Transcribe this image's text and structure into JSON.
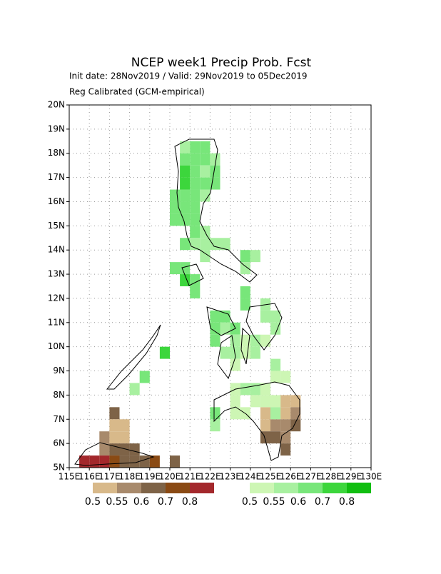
{
  "chart_data": {
    "type": "probmap",
    "title": "NCEP week1 Precip Prob. Fcst",
    "subtitle": "Init date: 28Nov2019 / Valid: 29Nov2019 to 05Dec2019",
    "note": "Reg Calibrated (GCM-empirical)",
    "xlim": [
      115,
      130
    ],
    "ylim": [
      5,
      20
    ],
    "cell": 0.5,
    "grid": true,
    "xticks": [
      {
        "value": 115,
        "label": "115E"
      },
      {
        "value": 116,
        "label": "116E"
      },
      {
        "value": 117,
        "label": "117E"
      },
      {
        "value": 118,
        "label": "118E"
      },
      {
        "value": 119,
        "label": "119E"
      },
      {
        "value": 120,
        "label": "120E"
      },
      {
        "value": 121,
        "label": "121E"
      },
      {
        "value": 122,
        "label": "122E"
      },
      {
        "value": 123,
        "label": "123E"
      },
      {
        "value": 124,
        "label": "124E"
      },
      {
        "value": 125,
        "label": "125E"
      },
      {
        "value": 126,
        "label": "126E"
      },
      {
        "value": 127,
        "label": "127E"
      },
      {
        "value": 128,
        "label": "128E"
      },
      {
        "value": 129,
        "label": "129E"
      },
      {
        "value": 130,
        "label": "130E"
      }
    ],
    "yticks": [
      {
        "value": 5,
        "label": "5N"
      },
      {
        "value": 6,
        "label": "6N"
      },
      {
        "value": 7,
        "label": "7N"
      },
      {
        "value": 8,
        "label": "8N"
      },
      {
        "value": 9,
        "label": "9N"
      },
      {
        "value": 10,
        "label": "10N"
      },
      {
        "value": 11,
        "label": "11N"
      },
      {
        "value": 12,
        "label": "12N"
      },
      {
        "value": 13,
        "label": "13N"
      },
      {
        "value": 14,
        "label": "14N"
      },
      {
        "value": 15,
        "label": "15N"
      },
      {
        "value": 16,
        "label": "16N"
      },
      {
        "value": 17,
        "label": "17N"
      },
      {
        "value": 18,
        "label": "18N"
      },
      {
        "value": 19,
        "label": "19N"
      },
      {
        "value": 20,
        "label": "20N"
      }
    ],
    "below": {
      "levels": [
        0.5,
        0.55,
        0.6,
        0.7,
        0.8
      ],
      "colors": [
        "#d8b98a",
        "#a88a6c",
        "#7e6347",
        "#8a4a14",
        "#a3282c"
      ],
      "cells": [
        [
          117,
          7,
          0.6
        ],
        [
          117,
          6.5,
          0.5
        ],
        [
          117.5,
          6.5,
          0.5
        ],
        [
          116.5,
          6,
          0.55
        ],
        [
          117,
          6,
          0.5
        ],
        [
          117.5,
          6,
          0.5
        ],
        [
          116.5,
          5.5,
          0.55
        ],
        [
          117,
          5.5,
          0.6
        ],
        [
          117.5,
          5.5,
          0.6
        ],
        [
          118,
          5.5,
          0.6
        ],
        [
          115.5,
          5,
          0.8
        ],
        [
          116,
          5,
          0.8
        ],
        [
          116.5,
          5,
          0.8
        ],
        [
          117,
          5,
          0.7
        ],
        [
          117.5,
          5,
          0.6
        ],
        [
          118,
          5,
          0.6
        ],
        [
          118.5,
          5,
          0.6
        ],
        [
          119,
          5,
          0.7
        ],
        [
          120,
          5,
          0.6
        ],
        [
          125.5,
          7.5,
          0.5
        ],
        [
          126,
          7.5,
          0.5
        ],
        [
          124.5,
          7,
          0.5
        ],
        [
          125.5,
          7,
          0.5
        ],
        [
          126,
          7,
          0.55
        ],
        [
          124.5,
          6.5,
          0.5
        ],
        [
          125,
          6.5,
          0.55
        ],
        [
          125.5,
          6.5,
          0.55
        ],
        [
          126,
          6.5,
          0.6
        ],
        [
          124.5,
          6,
          0.6
        ],
        [
          125,
          6,
          0.6
        ],
        [
          125.5,
          6,
          0.55
        ],
        [
          125.5,
          5.5,
          0.6
        ]
      ]
    },
    "above": {
      "levels": [
        0.5,
        0.55,
        0.6,
        0.7,
        0.8
      ],
      "colors": [
        "#cdf6b4",
        "#a8f0a0",
        "#78e67a",
        "#3cd63c",
        "#10be10"
      ],
      "cells": [
        [
          120.5,
          18,
          0.55
        ],
        [
          121,
          18,
          0.6
        ],
        [
          121.5,
          18,
          0.6
        ],
        [
          120.5,
          17.5,
          0.6
        ],
        [
          121,
          17.5,
          0.6
        ],
        [
          121.5,
          17.5,
          0.6
        ],
        [
          122,
          17.5,
          0.55
        ],
        [
          120.5,
          17,
          0.7
        ],
        [
          121,
          17,
          0.6
        ],
        [
          121.5,
          17,
          0.55
        ],
        [
          122,
          17,
          0.6
        ],
        [
          120.5,
          16.5,
          0.7
        ],
        [
          121,
          16.5,
          0.6
        ],
        [
          121.5,
          16.5,
          0.6
        ],
        [
          122,
          16.5,
          0.6
        ],
        [
          120,
          16,
          0.6
        ],
        [
          120.5,
          16,
          0.6
        ],
        [
          121,
          16,
          0.6
        ],
        [
          121.5,
          16,
          0.55
        ],
        [
          120,
          15.5,
          0.6
        ],
        [
          120.5,
          15.5,
          0.6
        ],
        [
          121,
          15.5,
          0.6
        ],
        [
          120,
          15,
          0.6
        ],
        [
          120.5,
          15,
          0.6
        ],
        [
          121,
          15,
          0.6
        ],
        [
          121,
          14.5,
          0.6
        ],
        [
          121.5,
          14.5,
          0.55
        ],
        [
          120.5,
          14,
          0.6
        ],
        [
          121,
          14,
          0.55
        ],
        [
          121.5,
          14,
          0.55
        ],
        [
          122,
          14,
          0.55
        ],
        [
          122.5,
          14,
          0.55
        ],
        [
          121.5,
          13.5,
          0.55
        ],
        [
          123.5,
          13.5,
          0.6
        ],
        [
          124,
          13.5,
          0.55
        ],
        [
          120,
          13,
          0.6
        ],
        [
          120.5,
          13,
          0.6
        ],
        [
          123.5,
          13,
          0.55
        ],
        [
          120.5,
          12.5,
          0.7
        ],
        [
          121,
          12.5,
          0.6
        ],
        [
          121,
          12,
          0.6
        ],
        [
          123.5,
          12,
          0.6
        ],
        [
          123.5,
          11.5,
          0.6
        ],
        [
          124.5,
          11.5,
          0.55
        ],
        [
          122,
          11,
          0.6
        ],
        [
          122.5,
          11,
          0.6
        ],
        [
          124.5,
          11,
          0.55
        ],
        [
          125,
          11,
          0.55
        ],
        [
          122,
          10.5,
          0.6
        ],
        [
          122.5,
          10.5,
          0.55
        ],
        [
          123,
          10.5,
          0.6
        ],
        [
          125,
          10.5,
          0.55
        ],
        [
          122,
          10,
          0.6
        ],
        [
          123,
          10,
          0.55
        ],
        [
          123.5,
          10,
          0.5
        ],
        [
          124,
          10,
          0.55
        ],
        [
          124.5,
          10,
          0.5
        ],
        [
          119.5,
          9.5,
          0.7
        ],
        [
          122.5,
          9.5,
          0.55
        ],
        [
          123,
          9.5,
          0.55
        ],
        [
          123.5,
          9.5,
          0.5
        ],
        [
          124,
          9.5,
          0.55
        ],
        [
          123,
          9,
          0.5
        ],
        [
          125,
          9,
          0.55
        ],
        [
          118.5,
          8.5,
          0.6
        ],
        [
          125,
          8.5,
          0.5
        ],
        [
          125.5,
          8.5,
          0.5
        ],
        [
          118,
          8,
          0.55
        ],
        [
          123,
          8,
          0.5
        ],
        [
          123.5,
          8,
          0.55
        ],
        [
          124,
          8,
          0.55
        ],
        [
          124.5,
          8,
          0.5
        ],
        [
          123,
          7.5,
          0.5
        ],
        [
          124,
          7.5,
          0.5
        ],
        [
          124.5,
          7.5,
          0.5
        ],
        [
          125,
          7.5,
          0.5
        ],
        [
          122,
          7,
          0.6
        ],
        [
          123,
          7,
          0.5
        ],
        [
          123.5,
          7,
          0.5
        ],
        [
          125,
          7,
          0.55
        ],
        [
          122,
          6.5,
          0.55
        ]
      ]
    }
  }
}
